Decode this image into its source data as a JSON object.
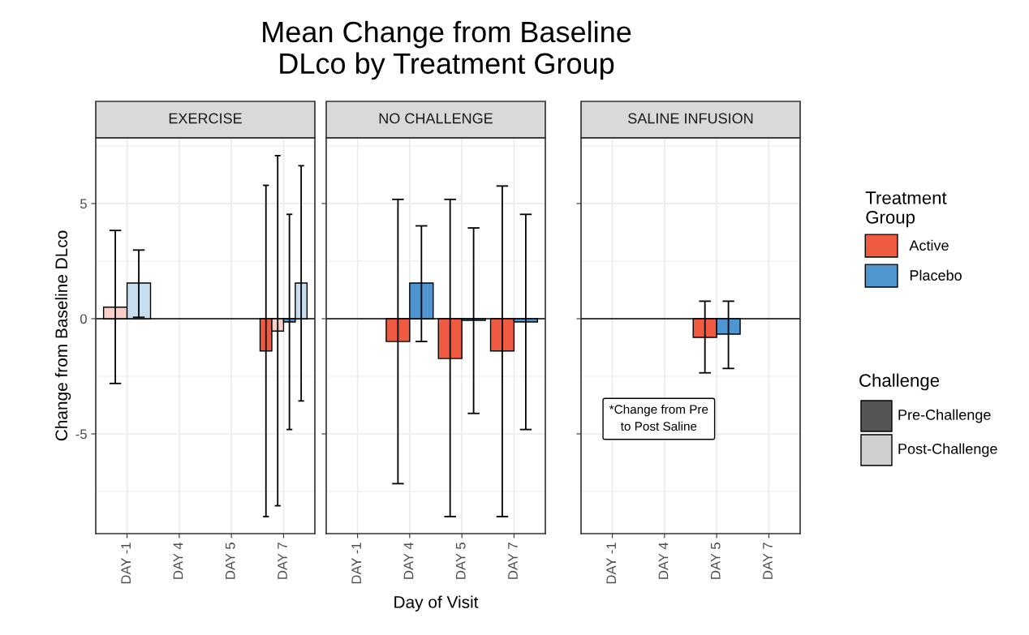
{
  "chart_data": [
    {
      "type": "bar",
      "title": "Mean Change from Baseline\nDLco by Treatment Group",
      "subtitle": "EXERCISE",
      "ylabel": "Change from Baseline DLco",
      "categories": [
        "DAY -1",
        "DAY 4",
        "DAY 5",
        "DAY 7"
      ],
      "ylim": [
        -9.33,
        7.85
      ],
      "yticks": [
        -5,
        0,
        5
      ],
      "grid": true,
      "ref_lines": [
        {
          "axis": "y",
          "value": 0,
          "color": "#000000"
        }
      ],
      "series": [
        {
          "color": "#ef5a40",
          "values": [
            null,
            null,
            null,
            -1.4
          ],
          "errors": [
            null,
            null,
            null,
            [
              -8.59,
              5.79
            ]
          ]
        },
        {
          "color": "#f9cfc8",
          "values": [
            0.5,
            null,
            null,
            -0.54
          ],
          "errors": [
            [
              -2.81,
              3.83
            ],
            null,
            null,
            [
              -8.12,
              7.08
            ]
          ]
        },
        {
          "color": "#4f95d0",
          "values": [
            null,
            null,
            null,
            -0.14
          ],
          "errors": [
            null,
            null,
            null,
            [
              -4.81,
              4.53
            ]
          ]
        },
        {
          "color": "#c7ddf0",
          "values": [
            1.55,
            null,
            null,
            1.55
          ],
          "errors": [
            [
              0.06,
              2.98
            ],
            null,
            null,
            [
              -3.57,
              6.64
            ]
          ]
        }
      ]
    },
    {
      "type": "bar",
      "subtitle": "NO CHALLENGE",
      "xlabel": "Day of Visit",
      "tick_labels": "x",
      "categories": [
        "DAY -1",
        "DAY 4",
        "DAY 5",
        "DAY 7"
      ],
      "ylim": [
        -9.33,
        7.85
      ],
      "yticks": [
        -5,
        0,
        5
      ],
      "grid": true,
      "ref_lines": [
        {
          "axis": "y",
          "value": 0,
          "color": "#000000"
        }
      ],
      "series": [
        {
          "name": "Active",
          "color": "#ef5a40",
          "values": [
            null,
            -0.99,
            -1.73,
            -1.4
          ],
          "errors": [
            null,
            [
              -7.16,
              5.18
            ],
            [
              -8.59,
              5.18
            ],
            [
              -8.59,
              5.76
            ]
          ]
        },
        {
          "name": "Placebo",
          "color": "#4f95d0",
          "values": [
            null,
            1.55,
            -0.07,
            -0.14
          ],
          "errors": [
            null,
            [
              -0.99,
              4.03
            ],
            [
              -4.11,
              3.94
            ],
            [
              -4.81,
              4.53
            ]
          ]
        }
      ],
      "legend": "right",
      "legend_title": "Treatment\nGroup"
    },
    {
      "type": "bar",
      "subtitle": "SALINE INFUSION",
      "tick_labels": "x",
      "categories": [
        "DAY -1",
        "DAY 4",
        "DAY 5",
        "DAY 7"
      ],
      "ylim": [
        -9.33,
        7.85
      ],
      "yticks": [
        -5,
        0,
        5
      ],
      "grid": true,
      "ref_lines": [
        {
          "axis": "y",
          "value": 0,
          "color": "#000000"
        }
      ],
      "annotations": [
        "*Change from Pre\nto Post Saline",
        "Challenge",
        "Pre-Challenge",
        "Post-Challenge"
      ],
      "series": [
        {
          "color": "#ef5a40",
          "values": [
            null,
            null,
            -0.81,
            null
          ],
          "errors": [
            null,
            null,
            [
              -2.35,
              0.76
            ],
            null
          ]
        },
        {
          "color": "#4f95d0",
          "values": [
            null,
            null,
            -0.67,
            null
          ],
          "errors": [
            null,
            null,
            [
              -2.16,
              0.76
            ],
            null
          ]
        }
      ]
    }
  ]
}
